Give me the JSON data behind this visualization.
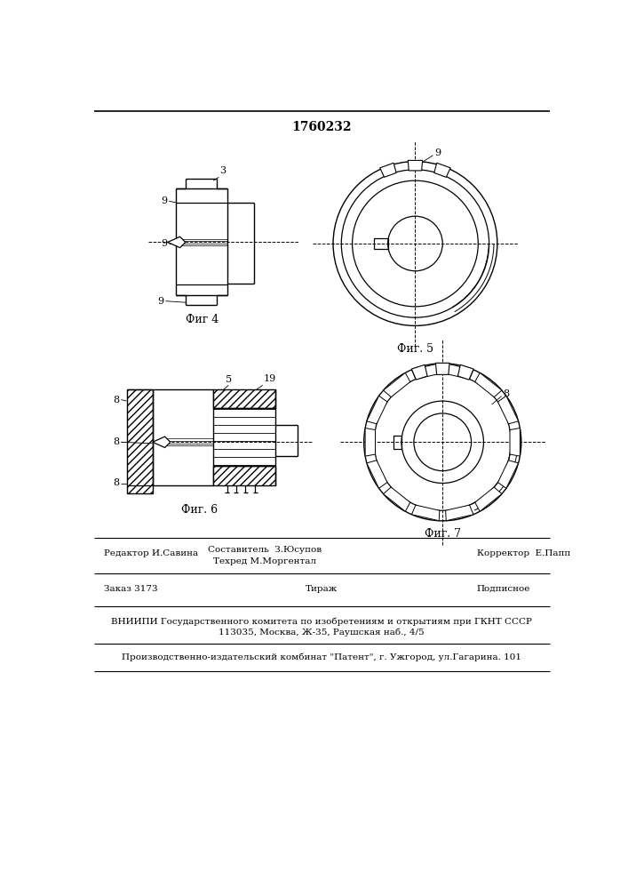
{
  "title": "1760232",
  "fig4_label": "Фиг 4",
  "fig5_label": "Фиг. 5",
  "fig6_label": "Фиг. 6",
  "fig7_label": "Фиг. 7",
  "bg_color": "#ffffff",
  "line_color": "#000000"
}
